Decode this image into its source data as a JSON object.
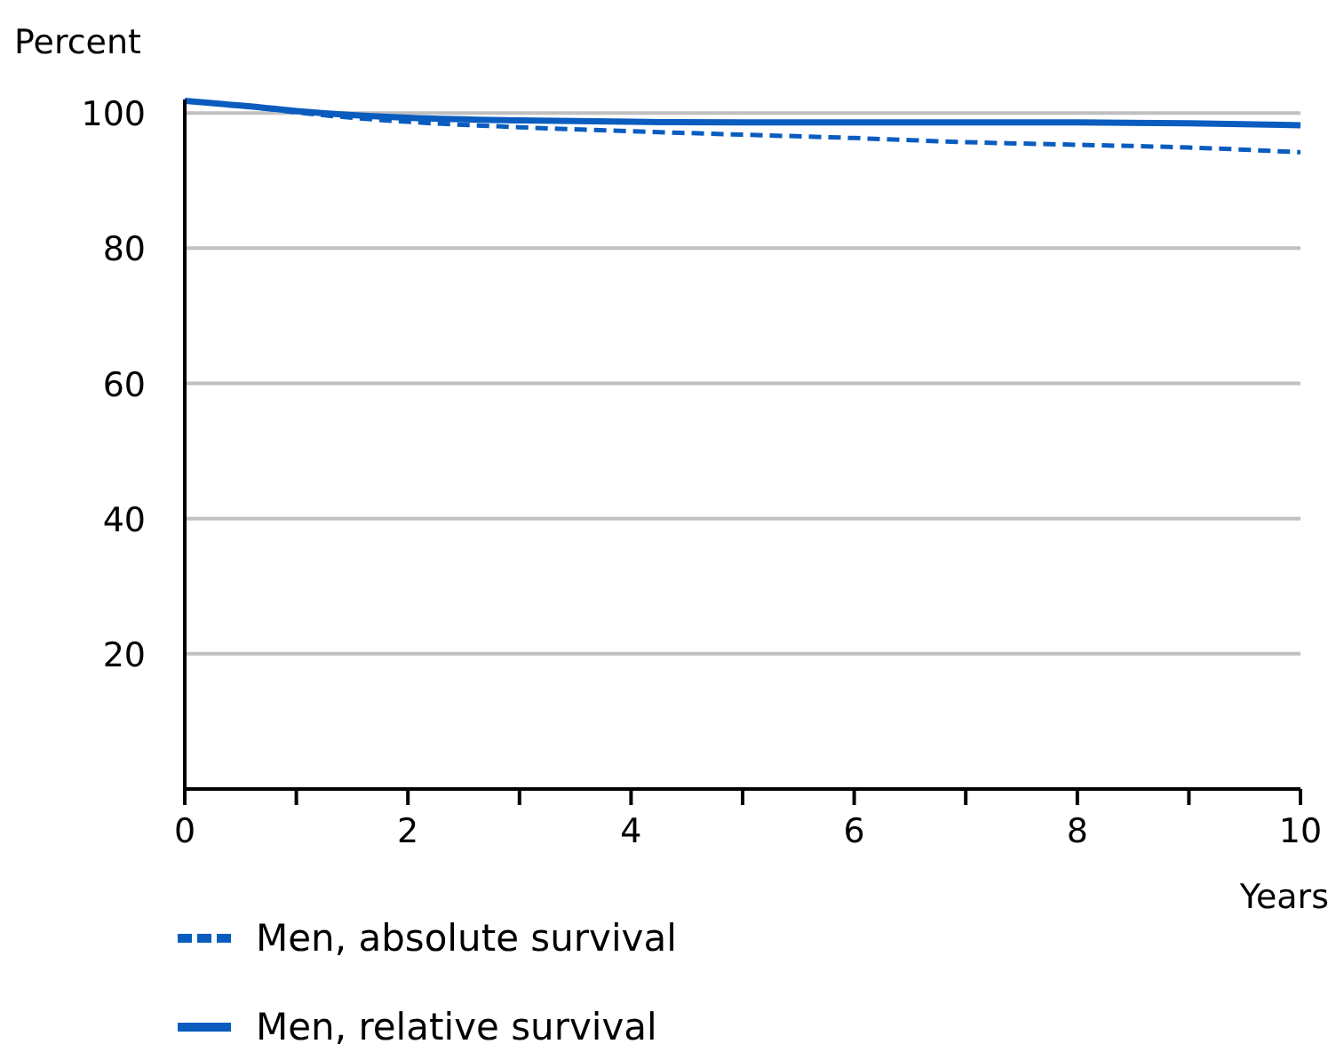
{
  "chart_data": {
    "type": "line",
    "ylabel": "Percent",
    "xlabel": "Years",
    "x": [
      0,
      0.5,
      1,
      1.5,
      2,
      3,
      4,
      5,
      6,
      7,
      8,
      9,
      10
    ],
    "series": [
      {
        "name": "Men, absolute survival",
        "color": "#0a5cbf",
        "line_style": "dashed",
        "values": [
          101.8,
          101.1,
          100.1,
          99.3,
          98.7,
          97.9,
          97.3,
          96.8,
          96.3,
          95.7,
          95.3,
          94.9,
          94.2
        ]
      },
      {
        "name": "Men, relative survival",
        "color": "#0a5cbf",
        "line_style": "solid",
        "values": [
          101.8,
          101.1,
          100.3,
          99.7,
          99.3,
          98.9,
          98.7,
          98.6,
          98.6,
          98.6,
          98.6,
          98.5,
          98.2
        ]
      }
    ],
    "xlim": [
      0,
      10
    ],
    "ylim": [
      0,
      102
    ],
    "xticks": [
      0,
      {
        "value": 1,
        "label": null
      },
      2,
      {
        "value": 3,
        "label": null
      },
      4,
      {
        "value": 5,
        "label": null
      },
      6,
      {
        "value": 7,
        "label": null
      },
      8,
      {
        "value": 9,
        "label": null
      },
      10
    ],
    "yticks": [
      20,
      40,
      60,
      80,
      100
    ],
    "grid": "y",
    "legend": "bottom"
  }
}
